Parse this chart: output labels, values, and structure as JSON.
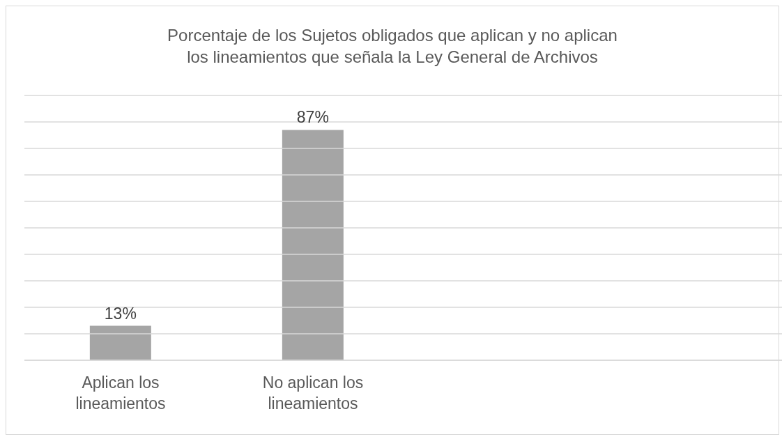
{
  "chart_data": {
    "type": "bar",
    "title": "Porcentaje de los Sujetos obligados que aplican y no aplican los lineamientos que señala la Ley General de Archivos",
    "categories": [
      "Aplican los lineamientos",
      "No aplican los lineamientos",
      null,
      null
    ],
    "values": [
      13,
      87,
      null,
      null
    ],
    "value_labels": [
      "13%",
      "87%",
      null,
      null
    ],
    "color": "#a5a5a5",
    "ylim": [
      0,
      100
    ],
    "yticks": [
      {
        "value": 0,
        "label": null
      },
      {
        "value": 10,
        "label": null
      },
      {
        "value": 20,
        "label": null
      },
      {
        "value": 30,
        "label": null
      },
      {
        "value": 40,
        "label": null
      },
      {
        "value": 50,
        "label": null
      },
      {
        "value": 60,
        "label": null
      },
      {
        "value": 70,
        "label": null
      },
      {
        "value": 80,
        "label": null
      },
      {
        "value": 90,
        "label": null
      },
      {
        "value": 100,
        "label": null
      }
    ],
    "grid": "y",
    "tick_labels": "x"
  }
}
